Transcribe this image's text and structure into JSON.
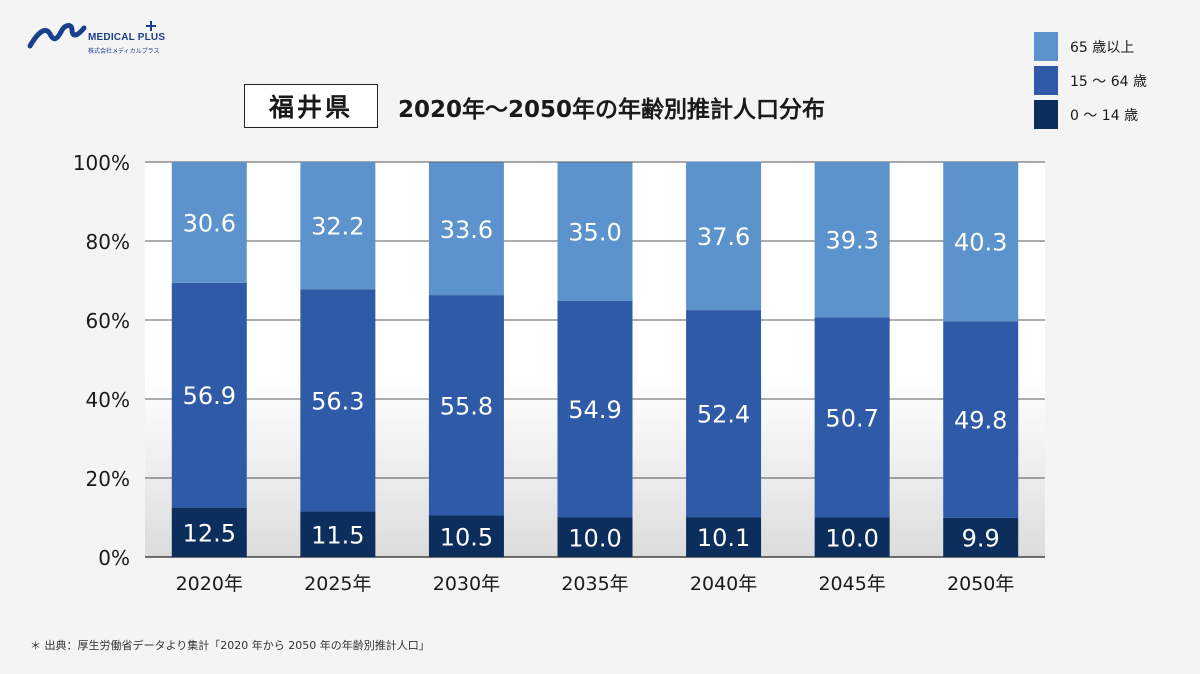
{
  "brand": {
    "name": "MEDICAL PLUS",
    "sub": "株式会社メディカルプラス",
    "color": "#1b3f8f"
  },
  "title": {
    "prefecture": "福井県",
    "main": "2020年〜2050年の年齢別推計人口分布"
  },
  "footnote": "＊ 出典：厚生労働省データより集計「2020 年から 2050 年の年齢別推計人口」",
  "chart_data": {
    "type": "bar",
    "stacked": true,
    "categories": [
      "2020年",
      "2025年",
      "2030年",
      "2035年",
      "2040年",
      "2045年",
      "2050年"
    ],
    "series": [
      {
        "name": "0 〜 14 歳",
        "color": "#0c2e5c",
        "values": [
          12.5,
          11.5,
          10.5,
          10.0,
          10.1,
          10.0,
          9.9
        ]
      },
      {
        "name": "15 〜 64 歳",
        "color": "#2f5aa7",
        "values": [
          56.9,
          56.3,
          55.8,
          54.9,
          52.4,
          50.7,
          49.8
        ]
      },
      {
        "name": "65 歳以上",
        "color": "#5d93cc",
        "values": [
          30.6,
          32.2,
          33.6,
          35.0,
          37.6,
          39.3,
          40.3
        ]
      }
    ],
    "legend_order": [
      2,
      1,
      0
    ],
    "legend_position": "top-right",
    "yticks": [
      "0%",
      "20%",
      "40%",
      "60%",
      "80%",
      "100%"
    ],
    "ylim": [
      0,
      100
    ],
    "grid": true
  }
}
